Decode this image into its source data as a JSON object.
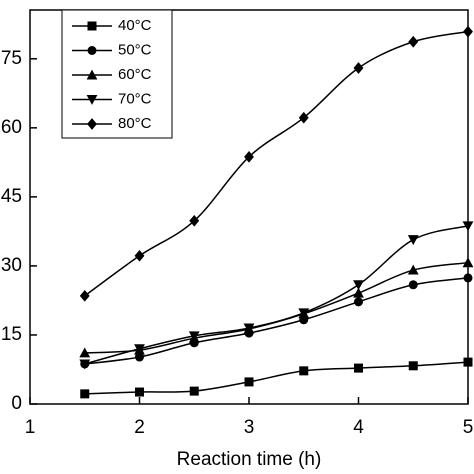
{
  "chart_data": {
    "type": "line",
    "x": [
      1.5,
      2,
      2.5,
      3,
      3.5,
      4,
      4.5,
      5
    ],
    "xlim": [
      1,
      5
    ],
    "xticks": [
      1,
      2,
      3,
      4,
      5
    ],
    "ylim": [
      0,
      85.6
    ],
    "yticks": [
      0,
      15,
      30,
      45,
      60,
      75
    ],
    "x_label": "Reaction time (h)",
    "legend": "upper left",
    "series": [
      {
        "name": "40°C",
        "color": "#000000",
        "marker": "square",
        "values": [
          2.2,
          2.6,
          2.8,
          4.8,
          7.2,
          7.8,
          8.3,
          9.1
        ]
      },
      {
        "name": "50°C",
        "color": "#000000",
        "marker": "circle",
        "values": [
          8.7,
          10.2,
          13.3,
          15.4,
          18.3,
          22.2,
          25.9,
          27.4
        ]
      },
      {
        "name": "60°C",
        "color": "#000000",
        "marker": "triangle-up",
        "values": [
          11.1,
          11.7,
          14.3,
          16.3,
          19.6,
          24.1,
          29.1,
          30.7
        ]
      },
      {
        "name": "70°C",
        "color": "#000000",
        "marker": "triangle-down",
        "values": [
          8.7,
          12.0,
          14.8,
          16.5,
          19.8,
          25.9,
          35.7,
          38.7
        ]
      },
      {
        "name": "80°C",
        "color": "#000000",
        "marker": "diamond",
        "values": [
          23.5,
          32.2,
          39.8,
          53.7,
          62.2,
          73.0,
          78.7,
          80.9
        ]
      }
    ]
  }
}
